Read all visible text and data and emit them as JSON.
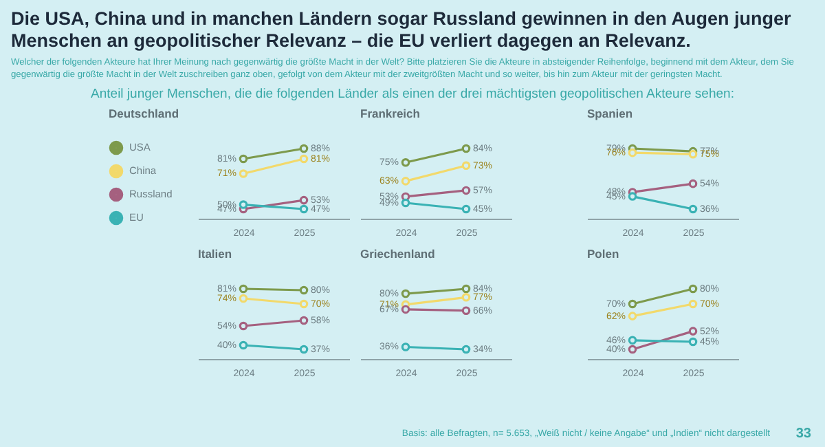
{
  "chart_data": [
    {
      "type": "other",
      "title": "Die USA, China und in manchen Ländern sogar Russland gewinnen in den Augen junger Menschen an geopolitischer Relevanz – die EU verliert dagegen an Relevanz.",
      "subtitle": "Welcher der folgenden Akteure hat Ihrer Meinung nach gegenwärtig die größte Macht in der Welt? Bitte platzieren Sie die Akteure in absteigender Reihenfolge, beginnend mit dem Akteur, dem Sie gegenwärtig die größte Macht in der Welt zuschreiben ganz oben, gefolgt von dem Akteur mit der zweitgrößten Macht und so weiter, bis hin zum Akteur mit der geringsten Macht.",
      "annotations": [
        "Anteil junger Menschen, die die folgenden Länder als einen der drei mächtigsten geopolitischen Akteure sehen:",
        "Basis: alle Befragten, n= 5.653, „Weiß nicht / keine Angabe“ und „Indien“ nicht dargestellt",
        "33"
      ]
    },
    {
      "type": "line",
      "title": "Deutschland",
      "categories": [
        "2024",
        "2025"
      ],
      "tick_labels": "x",
      "marker": "circle",
      "legend": "left",
      "series": [
        {
          "name": "USA",
          "color": "#7d9a4c",
          "values": [
            81,
            88
          ],
          "value_labels": [
            "81%",
            "88%"
          ]
        },
        {
          "name": "China",
          "color": "#f2d96b",
          "values": [
            71,
            81
          ],
          "value_labels": [
            "71%",
            "81%"
          ]
        },
        {
          "name": "Russland",
          "color": "#a5607f",
          "values": [
            47,
            53
          ],
          "value_labels": [
            "47%",
            "53%"
          ]
        },
        {
          "name": "EU",
          "color": "#3ab2b4",
          "values": [
            50,
            47
          ],
          "value_labels": [
            "50%",
            "47%"
          ]
        }
      ]
    },
    {
      "type": "line",
      "title": "Frankreich",
      "categories": [
        "2024",
        "2025"
      ],
      "tick_labels": "x",
      "marker": "circle",
      "series": [
        {
          "color": "#7d9a4c",
          "values": [
            75,
            84
          ],
          "value_labels": [
            "75%",
            "84%"
          ]
        },
        {
          "color": "#f2d96b",
          "values": [
            63,
            73
          ],
          "value_labels": [
            "63%",
            "73%"
          ]
        },
        {
          "color": "#a5607f",
          "values": [
            53,
            57
          ],
          "value_labels": [
            "53%",
            "57%"
          ]
        },
        {
          "color": "#3ab2b4",
          "values": [
            49,
            45
          ],
          "value_labels": [
            "49%",
            "45%"
          ]
        }
      ]
    },
    {
      "type": "line",
      "title": "Spanien",
      "categories": [
        "2024",
        "2025"
      ],
      "tick_labels": "x",
      "marker": "circle",
      "series": [
        {
          "color": "#7d9a4c",
          "values": [
            79,
            77
          ],
          "value_labels": [
            "79%",
            "77%"
          ]
        },
        {
          "color": "#f2d96b",
          "values": [
            76,
            75
          ],
          "value_labels": [
            "76%",
            "75%"
          ]
        },
        {
          "color": "#a5607f",
          "values": [
            48,
            54
          ],
          "value_labels": [
            "48%",
            "54%"
          ]
        },
        {
          "color": "#3ab2b4",
          "values": [
            45,
            36
          ],
          "value_labels": [
            "45%",
            "36%"
          ]
        }
      ]
    },
    {
      "type": "line",
      "title": "Italien",
      "categories": [
        "2024",
        "2025"
      ],
      "tick_labels": "x",
      "marker": "circle",
      "series": [
        {
          "color": "#7d9a4c",
          "values": [
            81,
            80
          ],
          "value_labels": [
            "81%",
            "80%"
          ]
        },
        {
          "color": "#f2d96b",
          "values": [
            74,
            70
          ],
          "value_labels": [
            "74%",
            "70%"
          ]
        },
        {
          "color": "#a5607f",
          "values": [
            54,
            58
          ],
          "value_labels": [
            "54%",
            "58%"
          ]
        },
        {
          "color": "#3ab2b4",
          "values": [
            40,
            37
          ],
          "value_labels": [
            "40%",
            "37%"
          ]
        }
      ]
    },
    {
      "type": "line",
      "title": "Griechenland",
      "categories": [
        "2024",
        "2025"
      ],
      "tick_labels": "x",
      "marker": "circle",
      "series": [
        {
          "color": "#7d9a4c",
          "values": [
            80,
            84
          ],
          "value_labels": [
            "80%",
            "84%"
          ]
        },
        {
          "color": "#f2d96b",
          "values": [
            71,
            77
          ],
          "value_labels": [
            "71%",
            "77%"
          ]
        },
        {
          "color": "#a5607f",
          "values": [
            67,
            66
          ],
          "value_labels": [
            "67%",
            "66%"
          ]
        },
        {
          "color": "#3ab2b4",
          "values": [
            36,
            34
          ],
          "value_labels": [
            "36%",
            "34%"
          ]
        }
      ]
    },
    {
      "type": "line",
      "title": "Polen",
      "categories": [
        "2024",
        "2025"
      ],
      "tick_labels": "x",
      "marker": "circle",
      "series": [
        {
          "color": "#7d9a4c",
          "values": [
            70,
            80
          ],
          "value_labels": [
            "70%",
            "80%"
          ]
        },
        {
          "color": "#f2d96b",
          "values": [
            62,
            70
          ],
          "value_labels": [
            "62%",
            "70%"
          ]
        },
        {
          "color": "#a5607f",
          "values": [
            40,
            52
          ],
          "value_labels": [
            "40%",
            "52%"
          ]
        },
        {
          "color": "#3ab2b4",
          "values": [
            46,
            45
          ],
          "value_labels": [
            "46%",
            "45%"
          ]
        }
      ]
    }
  ]
}
